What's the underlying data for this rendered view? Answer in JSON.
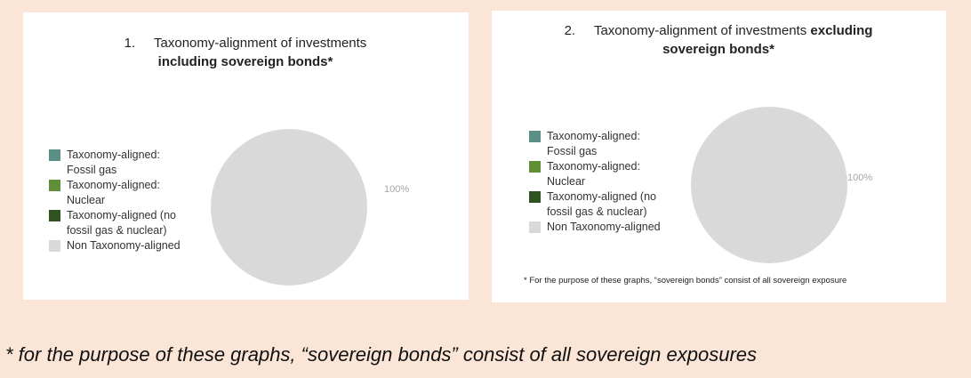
{
  "chart_data": [
    {
      "type": "pie",
      "title_number": "1.",
      "title": "Taxonomy-alignment of investments",
      "title_emphasis": "including sovereign bonds*",
      "categories": [
        "Taxonomy-aligned: Fossil gas",
        "Taxonomy-aligned: Nuclear",
        "Taxonomy-aligned (no fossil gas & nuclear)",
        "Non Taxonomy-aligned"
      ],
      "colors": [
        "#5a8f85",
        "#5f9038",
        "#2e5220",
        "#d9d9d9"
      ],
      "values": [
        0,
        0,
        0,
        100
      ],
      "value_labels": [
        null,
        null,
        null,
        "100%"
      ]
    },
    {
      "type": "pie",
      "title_number": "2.",
      "title": "Taxonomy-alignment of investments",
      "title_emphasis": "excluding sovereign bonds*",
      "categories": [
        "Taxonomy-aligned: Fossil gas",
        "Taxonomy-aligned: Nuclear",
        "Taxonomy-aligned (no fossil gas & nuclear)",
        "Non Taxonomy-aligned"
      ],
      "colors": [
        "#5a8f85",
        "#5f9038",
        "#2e5220",
        "#d9d9d9"
      ],
      "values": [
        0,
        0,
        0,
        100
      ],
      "value_labels": [
        null,
        null,
        null,
        "100%"
      ],
      "footnote": "* For the purpose of these graphs, “sovereign bonds” consist of all sovereign exposure"
    }
  ],
  "note": "* for the purpose of these graphs, “sovereign bonds” consist of all sovereign exposures"
}
